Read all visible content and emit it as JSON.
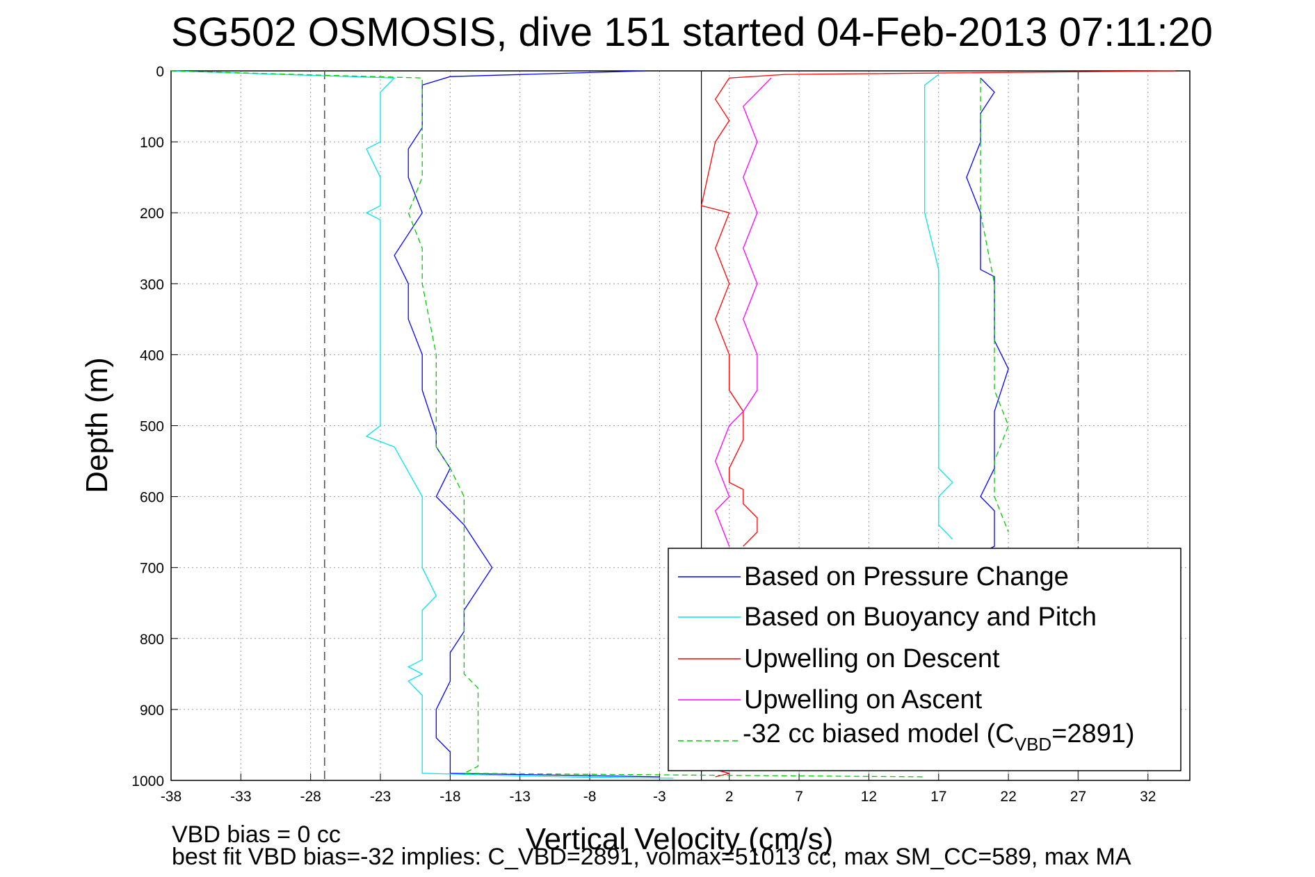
{
  "chart_data": {
    "type": "line",
    "title": "SG502 OSMOSIS, dive 151 started 04-Feb-2013 07:11:20",
    "xlabel": "Vertical Velocity (cm/s)",
    "ylabel": "Depth (m)",
    "xlim": [
      -38,
      35
    ],
    "ylim": [
      1000,
      0
    ],
    "x_ticks": [
      "-38",
      "-33",
      "-28",
      "-23",
      "-18",
      "-13",
      "-8",
      "-3",
      "2",
      "7",
      "12",
      "17",
      "22",
      "27",
      "32"
    ],
    "y_ticks": [
      "0",
      "100",
      "200",
      "300",
      "400",
      "500",
      "600",
      "700",
      "800",
      "900",
      "1000"
    ],
    "grid": true,
    "legend_position": "bottom-right",
    "reference_lines": {
      "solid": [
        0
      ],
      "dashed": [
        -27,
        27
      ]
    },
    "legend_entries": {
      "pressure": "Based on Pressure Change",
      "buoyancy": "Based on Buoyancy and Pitch",
      "up_desc": "Upwelling on Descent",
      "up_asc": "Upwelling on Ascent",
      "model_prefix": "-32 cc biased model (C",
      "model_sub": "VBD",
      "model_suffix": "=2891)"
    },
    "series": [
      {
        "name": "Based on Pressure Change",
        "color": "#0000ff",
        "dash": "none",
        "segments": [
          {
            "x": [
              -4,
              -18,
              -20,
              -20,
              -20,
              -21,
              -21,
              -20,
              -21,
              -22,
              -21,
              -21,
              -20,
              -20,
              -19,
              -19,
              -18,
              -19,
              -17,
              -16,
              -15,
              -16,
              -17,
              -17,
              -18,
              -18,
              -19,
              -19,
              -18,
              -18,
              -18,
              -3
            ],
            "y": [
              0,
              8,
              20,
              50,
              80,
              110,
              150,
              200,
              230,
              260,
              300,
              350,
              400,
              450,
              510,
              530,
              560,
              600,
              640,
              670,
              700,
              730,
              760,
              790,
              820,
              860,
              900,
              940,
              960,
              975,
              990,
              995
            ]
          },
          {
            "x": [
              20,
              21,
              20,
              20,
              19,
              20,
              20,
              20,
              21,
              21,
              21,
              22,
              21,
              21,
              21,
              20,
              21,
              21,
              21,
              19
            ],
            "y": [
              10,
              30,
              60,
              100,
              150,
              200,
              250,
              280,
              290,
              330,
              380,
              420,
              480,
              520,
              560,
              600,
              620,
              650,
              670,
              690
            ]
          }
        ]
      },
      {
        "name": "Based on Buoyancy and Pitch",
        "color": "#00e5ee",
        "dash": "none",
        "segments": [
          {
            "x": [
              -38,
              -22,
              -23,
              -23,
              -23,
              -24,
              -23,
              -23,
              -24,
              -23,
              -23,
              -23,
              -23,
              -23,
              -24,
              -22,
              -20,
              -20,
              -20,
              -19,
              -20,
              -20,
              -20,
              -21,
              -20,
              -21,
              -20,
              -20,
              -20,
              -10,
              -2
            ],
            "y": [
              0,
              10,
              30,
              60,
              100,
              110,
              150,
              190,
              200,
              210,
              250,
              300,
              400,
              500,
              515,
              530,
              600,
              650,
              700,
              740,
              760,
              800,
              830,
              840,
              850,
              860,
              880,
              900,
              990,
              995,
              997
            ]
          },
          {
            "x": [
              17,
              16,
              16,
              16,
              16,
              17,
              17,
              17,
              17,
              17,
              18,
              17,
              17,
              18
            ],
            "y": [
              5,
              20,
              50,
              100,
              200,
              280,
              400,
              480,
              500,
              560,
              580,
              600,
              640,
              660
            ]
          }
        ]
      },
      {
        "name": "Upwelling on Descent",
        "color": "#ff0000",
        "dash": "none",
        "segments": [
          {
            "x": [
              34,
              6,
              2,
              1,
              2,
              1,
              0,
              2,
              1,
              2,
              1,
              2,
              2,
              3,
              3,
              2,
              2,
              3,
              3,
              4,
              4,
              3
            ],
            "y": [
              0,
              5,
              10,
              40,
              70,
              100,
              190,
              200,
              250,
              300,
              350,
              400,
              450,
              480,
              520,
              560,
              580,
              590,
              610,
              630,
              650,
              670
            ]
          },
          {
            "x": [
              1,
              2,
              1
            ],
            "y": [
              985,
              990,
              995
            ]
          }
        ]
      },
      {
        "name": "Upwelling on Ascent",
        "color": "#ff00ff",
        "dash": "none",
        "segments": [
          {
            "x": [
              5,
              3,
              4,
              3,
              4,
              3,
              4,
              3,
              4,
              4,
              3,
              2,
              1,
              2,
              1,
              2
            ],
            "y": [
              10,
              50,
              100,
              150,
              200,
              250,
              300,
              350,
              400,
              450,
              480,
              500,
              550,
              600,
              620,
              670
            ]
          }
        ]
      },
      {
        "name": "-32 cc biased model (CVBD=2891)",
        "color": "#00cc00",
        "dash": "8 5",
        "segments": [
          {
            "x": [
              -38,
              -20,
              -20,
              -20,
              -20,
              -21,
              -20,
              -20,
              -20,
              -19,
              -19,
              -19,
              -18,
              -17,
              -17,
              -17,
              -17,
              -17,
              -17,
              -17,
              -16,
              -16,
              -16,
              -16,
              -16,
              -16,
              -17,
              16
            ],
            "y": [
              0,
              10,
              50,
              100,
              150,
              200,
              250,
              280,
              300,
              400,
              500,
              530,
              560,
              600,
              650,
              700,
              750,
              800,
              840,
              850,
              870,
              900,
              910,
              920,
              950,
              980,
              990,
              995
            ]
          },
          {
            "x": [
              20,
              20,
              20,
              21,
              21,
              21,
              21,
              22,
              21,
              21,
              22
            ],
            "y": [
              10,
              100,
              200,
              300,
              350,
              400,
              450,
              500,
              550,
              600,
              650
            ]
          }
        ]
      }
    ]
  },
  "footer": {
    "line1": "VBD bias = 0 cc",
    "line2": "best fit VBD bias=-32 implies: C_VBD=2891, volmax=51013 cc, max SM_CC=589, max MA"
  }
}
